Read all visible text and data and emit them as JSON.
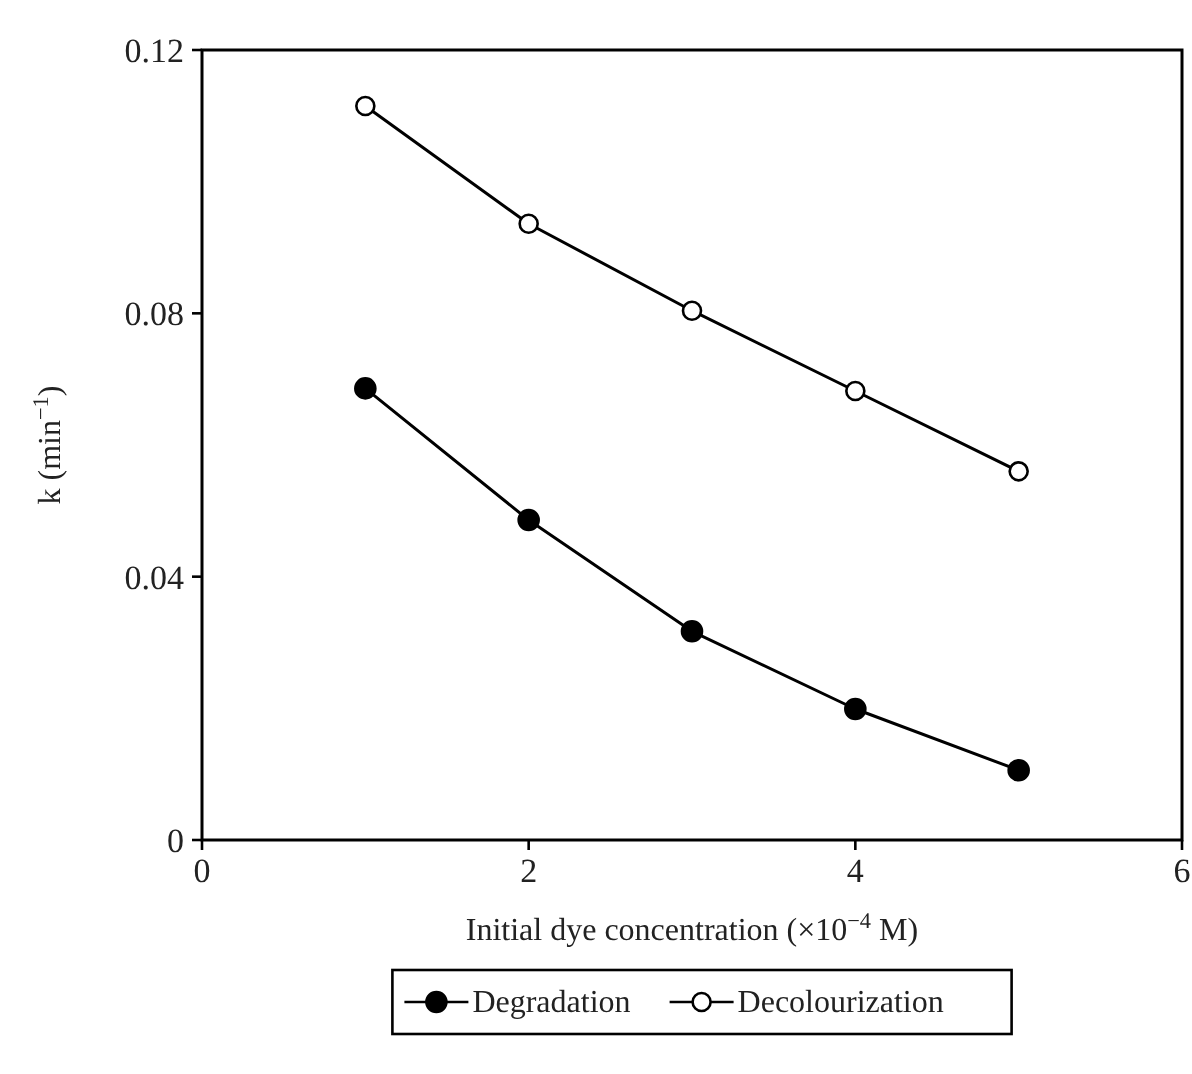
{
  "chart_data": {
    "type": "line",
    "xlabel": "Initial dye concentration (×10$^{−4}$ M)",
    "ylabel": "k (min$^{−1}$)",
    "x": [
      1,
      2,
      3,
      4,
      5
    ],
    "series": [
      {
        "name": "Degradation",
        "color": "#000000",
        "values": [
          0.0686,
          0.0486,
          0.0317,
          0.0199,
          0.0106
        ]
      },
      {
        "name": "Decolourization",
        "color": "#000000",
        "values": [
          0.1115,
          0.0936,
          0.0804,
          0.0682,
          0.056
        ]
      }
    ],
    "xlim": [
      0,
      6
    ],
    "xticks": [
      0,
      2,
      4,
      6
    ],
    "ylim": [
      0,
      0.12
    ],
    "yticks": [
      0,
      0.04,
      0.08,
      0.12
    ],
    "marker": "circle",
    "line_style": "solid",
    "legend": "bottom",
    "grid": false
  }
}
